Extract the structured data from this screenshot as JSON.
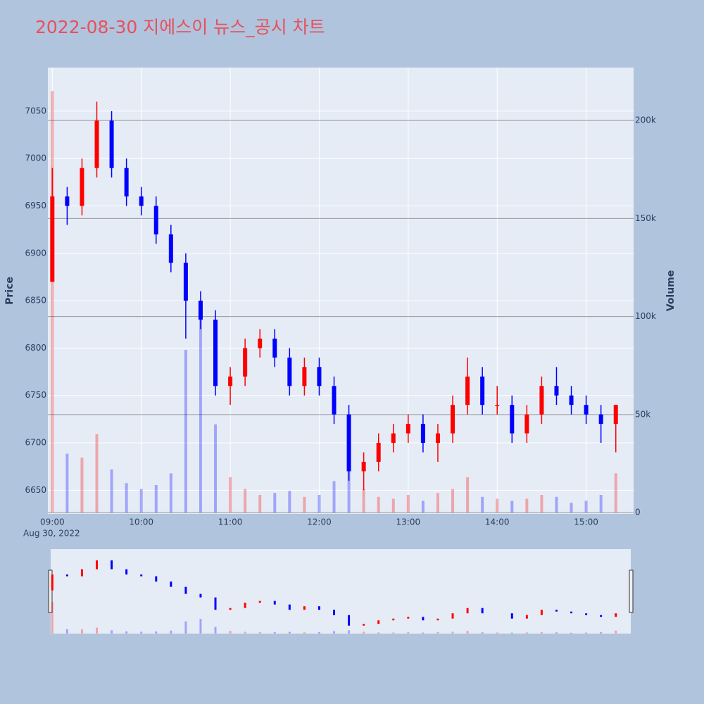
{
  "chart_data": {
    "type": "candlestick",
    "title": "2022-08-30 지에스이 뉴스_공시 차트",
    "ylabel": "Price",
    "y2label": "Volume",
    "x_date_label": "Aug 30, 2022",
    "x": [
      "2022-08-30 09:00",
      "2022-08-30 09:10",
      "2022-08-30 09:20",
      "2022-08-30 09:30",
      "2022-08-30 09:40",
      "2022-08-30 09:50",
      "2022-08-30 10:00",
      "2022-08-30 10:10",
      "2022-08-30 10:20",
      "2022-08-30 10:30",
      "2022-08-30 10:40",
      "2022-08-30 10:50",
      "2022-08-30 11:00",
      "2022-08-30 11:10",
      "2022-08-30 11:20",
      "2022-08-30 11:30",
      "2022-08-30 11:40",
      "2022-08-30 11:50",
      "2022-08-30 12:00",
      "2022-08-30 12:10",
      "2022-08-30 12:20",
      "2022-08-30 12:30",
      "2022-08-30 12:40",
      "2022-08-30 12:50",
      "2022-08-30 13:00",
      "2022-08-30 13:10",
      "2022-08-30 13:20",
      "2022-08-30 13:30",
      "2022-08-30 13:40",
      "2022-08-30 13:50",
      "2022-08-30 14:00",
      "2022-08-30 14:10",
      "2022-08-30 14:20",
      "2022-08-30 14:30",
      "2022-08-30 14:40",
      "2022-08-30 14:50",
      "2022-08-30 15:00",
      "2022-08-30 15:10",
      "2022-08-30 15:20"
    ],
    "open": [
      6870,
      6960,
      6950,
      6990,
      7040,
      6990,
      6960,
      6950,
      6920,
      6890,
      6850,
      6830,
      6760,
      6770,
      6800,
      6810,
      6790,
      6760,
      6780,
      6760,
      6730,
      6670,
      6680,
      6700,
      6710,
      6720,
      6700,
      6710,
      6740,
      6770,
      6740,
      6740,
      6710,
      6730,
      6760,
      6750,
      6740,
      6730,
      6720
    ],
    "high": [
      6990,
      6970,
      7000,
      7060,
      7050,
      7000,
      6970,
      6960,
      6930,
      6900,
      6860,
      6840,
      6780,
      6810,
      6820,
      6820,
      6800,
      6790,
      6790,
      6770,
      6740,
      6690,
      6710,
      6720,
      6730,
      6730,
      6720,
      6750,
      6790,
      6780,
      6760,
      6750,
      6740,
      6770,
      6780,
      6760,
      6750,
      6740,
      6740
    ],
    "low": [
      6870,
      6930,
      6940,
      6980,
      6980,
      6950,
      6940,
      6910,
      6880,
      6810,
      6820,
      6750,
      6740,
      6760,
      6790,
      6780,
      6750,
      6750,
      6750,
      6720,
      6660,
      6650,
      6670,
      6690,
      6700,
      6690,
      6680,
      6700,
      6730,
      6730,
      6730,
      6700,
      6700,
      6720,
      6740,
      6730,
      6720,
      6700,
      6690
    ],
    "close": [
      6960,
      6950,
      6990,
      7040,
      6990,
      6960,
      6950,
      6920,
      6890,
      6850,
      6830,
      6760,
      6770,
      6800,
      6810,
      6790,
      6760,
      6780,
      6760,
      6730,
      6670,
      6680,
      6700,
      6710,
      6720,
      6700,
      6710,
      6740,
      6770,
      6740,
      6740,
      6710,
      6730,
      6760,
      6750,
      6740,
      6730,
      6720,
      6740
    ],
    "volume": [
      215000,
      30000,
      28000,
      40000,
      22000,
      15000,
      12000,
      14000,
      20000,
      83000,
      100000,
      45000,
      18000,
      12000,
      9000,
      10000,
      11000,
      8000,
      9000,
      16000,
      22000,
      12000,
      8000,
      7000,
      9000,
      6000,
      10000,
      12000,
      18000,
      8000,
      7000,
      6000,
      7000,
      9000,
      8000,
      5000,
      6000,
      9000,
      20000
    ],
    "increasing_color": "#ff0000",
    "decreasing_color": "#0000ff",
    "xlim": [
      "2022-08-30 08:57",
      "2022-08-30 15:32"
    ],
    "xticks": [
      {
        "value": "2022-08-30 09:00",
        "label": "09:00"
      },
      {
        "value": "2022-08-30 10:00",
        "label": "10:00"
      },
      {
        "value": "2022-08-30 11:00",
        "label": "11:00"
      },
      {
        "value": "2022-08-30 12:00",
        "label": "12:00"
      },
      {
        "value": "2022-08-30 13:00",
        "label": "13:00"
      },
      {
        "value": "2022-08-30 14:00",
        "label": "14:00"
      },
      {
        "value": "2022-08-30 15:00",
        "label": "15:00"
      }
    ],
    "ylim": [
      6625,
      7096
    ],
    "yticks": [
      6650,
      6700,
      6750,
      6800,
      6850,
      6900,
      6950,
      7000,
      7050
    ],
    "y2lim": [
      -700,
      227000
    ],
    "y2ticks": [
      0,
      {
        "value": 50000,
        "label": "50k"
      },
      {
        "value": 100000,
        "label": "100k"
      },
      {
        "value": 150000,
        "label": "150k"
      },
      {
        "value": 200000,
        "label": "200k"
      }
    ],
    "grid": true,
    "rangeslider": true
  }
}
